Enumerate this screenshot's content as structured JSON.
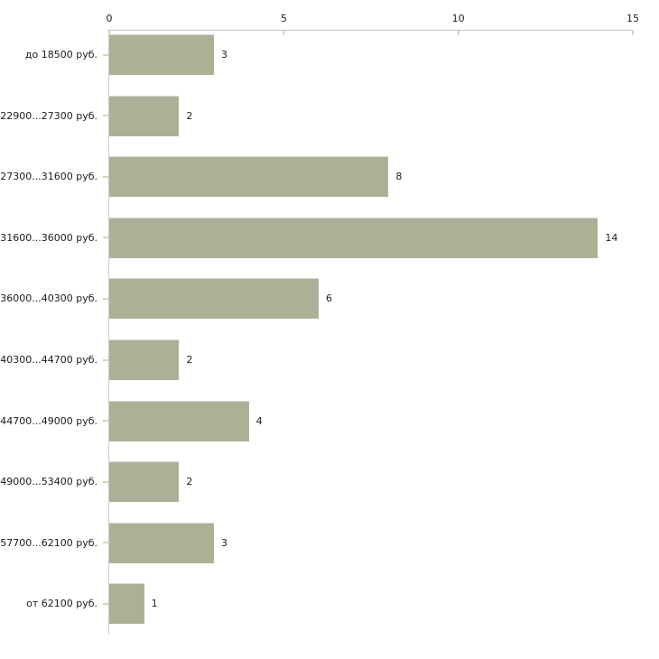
{
  "chart_data": {
    "type": "bar",
    "orientation": "horizontal",
    "x_axis_position": "top",
    "title": "",
    "xlabel": "",
    "ylabel": "",
    "categories": [
      "до 18500 руб.",
      "22900...27300 руб.",
      "27300...31600 руб.",
      "31600...36000 руб.",
      "36000...40300 руб.",
      "40300...44700 руб.",
      "44700...49000 руб.",
      "49000...53400 руб.",
      "57700...62100 руб.",
      "от 62100 руб."
    ],
    "values": [
      3,
      2,
      8,
      14,
      6,
      2,
      4,
      2,
      3,
      1
    ],
    "xlim": [
      0,
      15
    ],
    "x_ticks": [
      0,
      5,
      10,
      15
    ],
    "grid": false,
    "legend": false,
    "colors": {
      "bar": "#abb197",
      "bar_edge": "#d8dacd",
      "axis": "#c3c3c3",
      "tick": "#d6d6af",
      "text": "#1b1b1b",
      "background": "#ffffff"
    }
  }
}
